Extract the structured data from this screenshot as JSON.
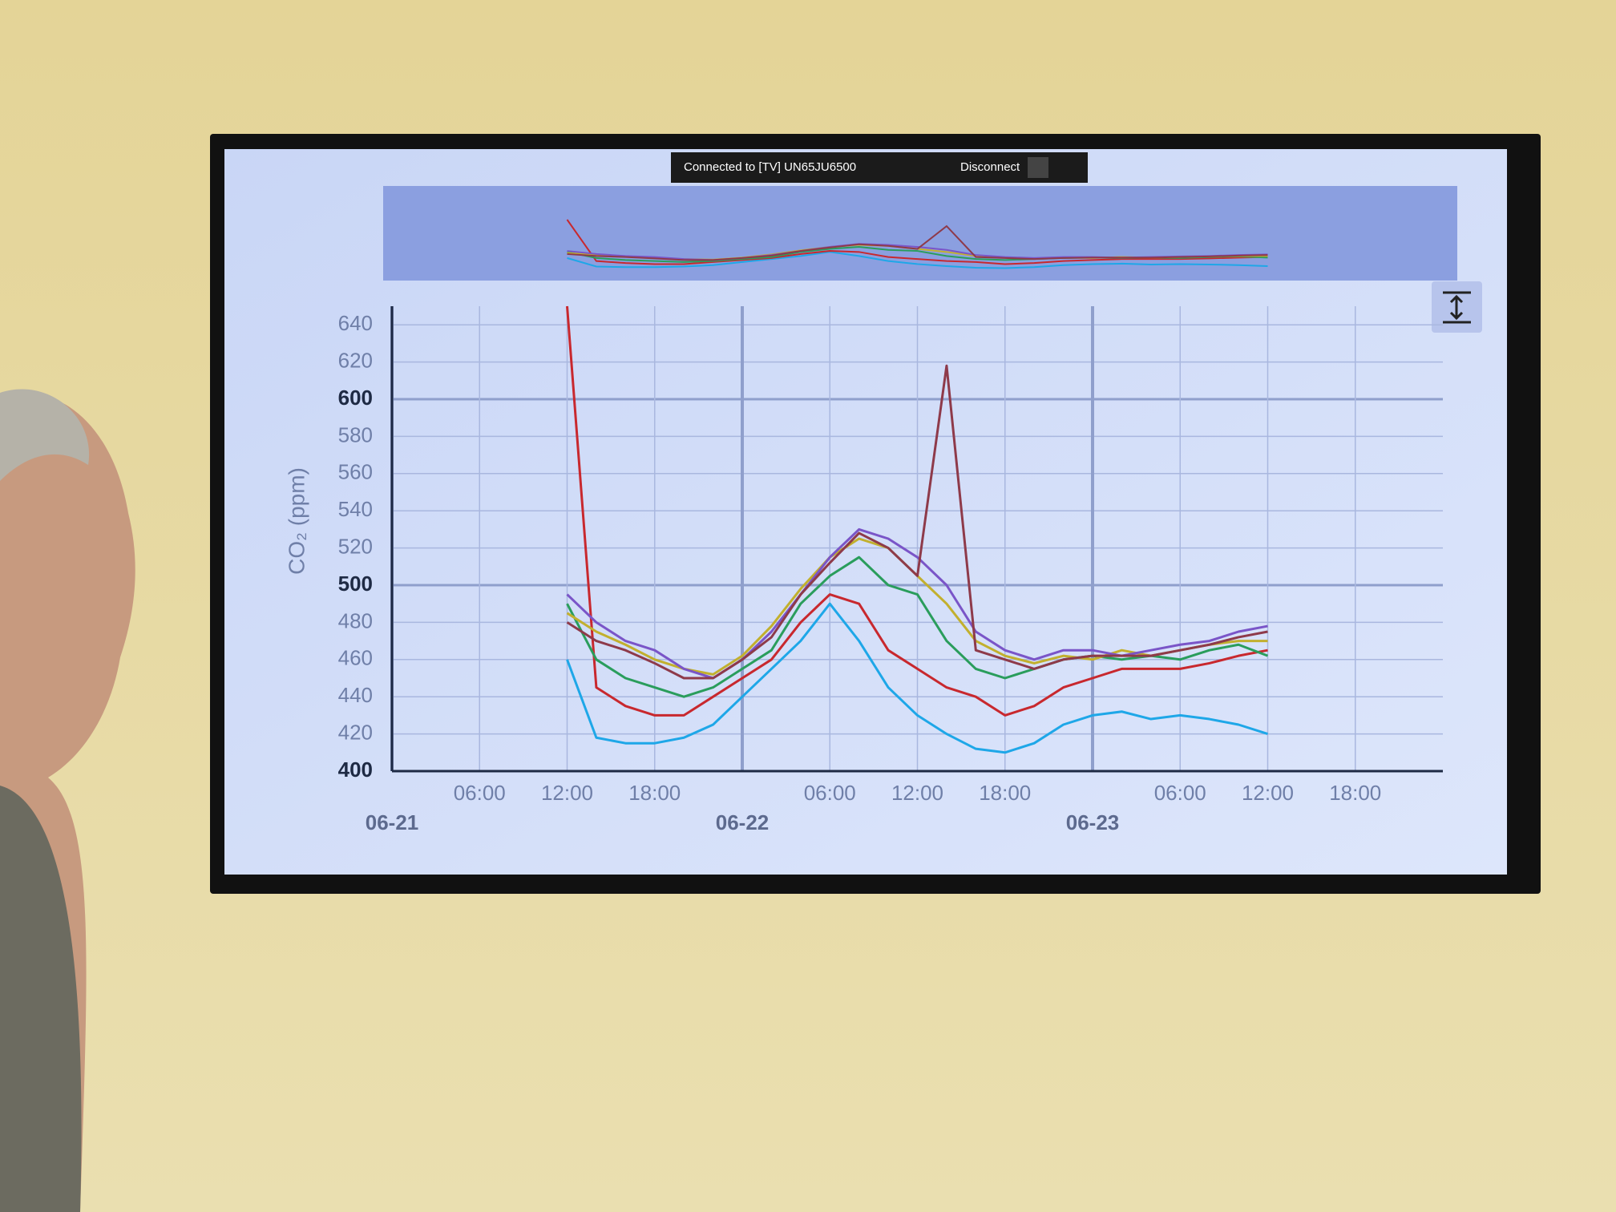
{
  "cast_bar": {
    "status": "Connected to [TV] UN65JU6500",
    "action": "Disconnect"
  },
  "chart_data": {
    "type": "line",
    "y_label": "CO₂ (ppm)",
    "ylim": [
      400,
      650
    ],
    "yticks": [
      400,
      420,
      440,
      460,
      480,
      500,
      520,
      540,
      560,
      580,
      600,
      620,
      640
    ],
    "xlim": [
      "06-21 00:00",
      "06-24 00:00"
    ],
    "xticks": [
      {
        "value": "06-21 00:00",
        "label": "06-21"
      },
      {
        "value": "06-21 06:00",
        "label": "06:00"
      },
      {
        "value": "06-21 12:00",
        "label": "12:00"
      },
      {
        "value": "06-21 18:00",
        "label": "18:00"
      },
      {
        "value": "06-22 00:00",
        "label": "06-22"
      },
      {
        "value": "06-22 06:00",
        "label": "06:00"
      },
      {
        "value": "06-22 12:00",
        "label": "12:00"
      },
      {
        "value": "06-22 18:00",
        "label": "18:00"
      },
      {
        "value": "06-23 00:00",
        "label": "06-23"
      },
      {
        "value": "06-23 06:00",
        "label": "06:00"
      },
      {
        "value": "06-23 12:00",
        "label": "12:00"
      },
      {
        "value": "06-23 18:00",
        "label": "18:00"
      }
    ],
    "grid": true,
    "x": [
      "06-21 12:00",
      "06-21 14:00",
      "06-21 16:00",
      "06-21 18:00",
      "06-21 20:00",
      "06-21 22:00",
      "06-22 00:00",
      "06-22 02:00",
      "06-22 04:00",
      "06-22 06:00",
      "06-22 08:00",
      "06-22 10:00",
      "06-22 12:00",
      "06-22 14:00",
      "06-22 16:00",
      "06-22 18:00",
      "06-22 20:00",
      "06-22 22:00",
      "06-23 00:00",
      "06-23 02:00",
      "06-23 04:00",
      "06-23 06:00",
      "06-23 08:00",
      "06-23 10:00",
      "06-23 12:00"
    ],
    "series": [
      {
        "color": "#1ea7e8",
        "values": [
          460,
          418,
          415,
          415,
          418,
          425,
          440,
          455,
          470,
          490,
          470,
          445,
          430,
          420,
          412,
          410,
          415,
          425,
          430,
          432,
          428,
          430,
          428,
          425,
          420
        ]
      },
      {
        "color": "#c8282e",
        "values": [
          650,
          445,
          435,
          430,
          430,
          440,
          450,
          460,
          480,
          495,
          490,
          465,
          455,
          445,
          440,
          430,
          435,
          445,
          450,
          455,
          455,
          455,
          458,
          462,
          465
        ]
      },
      {
        "color": "#2a9d5c",
        "values": [
          490,
          460,
          450,
          445,
          440,
          445,
          455,
          465,
          490,
          505,
          515,
          500,
          495,
          470,
          455,
          450,
          455,
          460,
          462,
          460,
          462,
          460,
          465,
          468,
          462
        ]
      },
      {
        "color": "#c2b02e",
        "values": [
          485,
          475,
          468,
          460,
          455,
          452,
          462,
          478,
          498,
          515,
          525,
          520,
          505,
          490,
          470,
          462,
          458,
          462,
          460,
          465,
          462,
          465,
          468,
          470,
          470
        ]
      },
      {
        "color": "#7a55c8",
        "values": [
          495,
          480,
          470,
          465,
          455,
          450,
          460,
          475,
          495,
          515,
          530,
          525,
          515,
          500,
          475,
          465,
          460,
          465,
          465,
          462,
          465,
          468,
          470,
          475,
          478
        ]
      },
      {
        "color": "#8e3a4a",
        "values": [
          480,
          470,
          465,
          458,
          450,
          450,
          460,
          472,
          495,
          512,
          528,
          520,
          505,
          618,
          465,
          460,
          455,
          460,
          462,
          462,
          462,
          465,
          468,
          472,
          475
        ]
      }
    ]
  }
}
